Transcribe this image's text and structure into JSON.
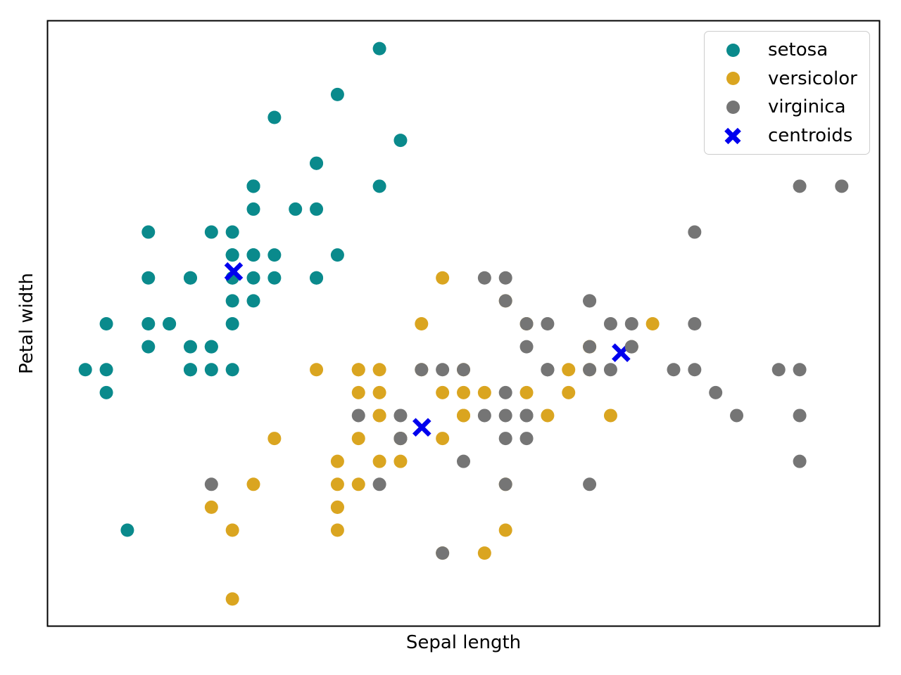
{
  "chart_data": {
    "type": "scatter",
    "title": "",
    "xlabel": "Sepal length",
    "ylabel": "Petal width",
    "xlim": [
      4.12,
      8.08
    ],
    "ylim": [
      1.88,
      4.52
    ],
    "grid": false,
    "ticks": "none",
    "axis_color": "#000000",
    "background_color": "#ffffff",
    "series": [
      {
        "name": "setosa",
        "marker": "circle",
        "color": "#0a8a8c",
        "points": [
          [
            5.1,
            3.5
          ],
          [
            4.9,
            3.0
          ],
          [
            4.7,
            3.2
          ],
          [
            4.6,
            3.1
          ],
          [
            5.0,
            3.6
          ],
          [
            5.4,
            3.9
          ],
          [
            4.6,
            3.4
          ],
          [
            5.0,
            3.4
          ],
          [
            4.4,
            2.9
          ],
          [
            4.9,
            3.1
          ],
          [
            5.4,
            3.7
          ],
          [
            4.8,
            3.4
          ],
          [
            4.8,
            3.0
          ],
          [
            4.3,
            3.0
          ],
          [
            5.8,
            4.0
          ],
          [
            5.7,
            4.4
          ],
          [
            5.4,
            3.9
          ],
          [
            5.1,
            3.5
          ],
          [
            5.7,
            3.8
          ],
          [
            5.1,
            3.8
          ],
          [
            5.4,
            3.4
          ],
          [
            5.1,
            3.7
          ],
          [
            4.6,
            3.6
          ],
          [
            5.1,
            3.3
          ],
          [
            4.8,
            3.4
          ],
          [
            5.0,
            3.0
          ],
          [
            5.0,
            3.4
          ],
          [
            5.2,
            3.5
          ],
          [
            5.2,
            3.4
          ],
          [
            4.7,
            3.2
          ],
          [
            4.8,
            3.1
          ],
          [
            5.4,
            3.4
          ],
          [
            5.2,
            4.1
          ],
          [
            5.5,
            4.2
          ],
          [
            4.9,
            3.1
          ],
          [
            5.0,
            3.2
          ],
          [
            5.5,
            3.5
          ],
          [
            4.9,
            3.6
          ],
          [
            4.4,
            3.0
          ],
          [
            5.1,
            3.4
          ],
          [
            5.0,
            3.5
          ],
          [
            4.5,
            2.3
          ],
          [
            4.4,
            3.2
          ],
          [
            5.0,
            3.5
          ],
          [
            5.1,
            3.8
          ],
          [
            4.8,
            3.0
          ],
          [
            5.1,
            3.8
          ],
          [
            4.6,
            3.2
          ],
          [
            5.3,
            3.7
          ],
          [
            5.0,
            3.3
          ]
        ]
      },
      {
        "name": "versicolor",
        "marker": "circle",
        "color": "#daa520",
        "points": [
          [
            7.0,
            3.2
          ],
          [
            6.4,
            3.2
          ],
          [
            6.9,
            3.1
          ],
          [
            5.5,
            2.3
          ],
          [
            6.5,
            2.8
          ],
          [
            5.7,
            2.8
          ],
          [
            6.3,
            3.3
          ],
          [
            4.9,
            2.4
          ],
          [
            6.6,
            2.9
          ],
          [
            5.2,
            2.7
          ],
          [
            5.0,
            2.0
          ],
          [
            5.9,
            3.0
          ],
          [
            6.0,
            2.2
          ],
          [
            6.1,
            2.9
          ],
          [
            5.6,
            2.9
          ],
          [
            6.7,
            3.1
          ],
          [
            5.6,
            3.0
          ],
          [
            5.8,
            2.7
          ],
          [
            6.2,
            2.2
          ],
          [
            5.6,
            2.5
          ],
          [
            5.9,
            3.2
          ],
          [
            6.1,
            2.8
          ],
          [
            6.3,
            2.5
          ],
          [
            6.1,
            2.8
          ],
          [
            6.4,
            2.9
          ],
          [
            6.6,
            3.0
          ],
          [
            6.8,
            2.8
          ],
          [
            6.7,
            3.0
          ],
          [
            6.0,
            2.9
          ],
          [
            5.7,
            2.6
          ],
          [
            5.5,
            2.4
          ],
          [
            5.5,
            2.4
          ],
          [
            5.8,
            2.7
          ],
          [
            6.0,
            2.7
          ],
          [
            5.4,
            3.0
          ],
          [
            6.0,
            3.4
          ],
          [
            6.7,
            3.1
          ],
          [
            6.3,
            2.3
          ],
          [
            5.6,
            3.0
          ],
          [
            5.5,
            2.5
          ],
          [
            5.5,
            2.6
          ],
          [
            6.1,
            3.0
          ],
          [
            5.8,
            2.6
          ],
          [
            5.0,
            2.3
          ],
          [
            5.6,
            2.7
          ],
          [
            5.7,
            3.0
          ],
          [
            5.7,
            2.9
          ],
          [
            6.2,
            2.9
          ],
          [
            5.1,
            2.5
          ],
          [
            5.7,
            2.8
          ]
        ]
      },
      {
        "name": "centroids",
        "marker": "x",
        "color": "#0000ee",
        "points": [
          [
            5.006,
            3.428
          ],
          [
            5.9016,
            2.7485
          ],
          [
            6.85,
            3.0737
          ]
        ]
      },
      {
        "name": "virginica",
        "marker": "circle",
        "color": "#757575",
        "points": [
          [
            6.3,
            3.3
          ],
          [
            5.8,
            2.7
          ],
          [
            7.1,
            3.0
          ],
          [
            6.3,
            2.9
          ],
          [
            6.5,
            3.0
          ],
          [
            7.6,
            3.0
          ],
          [
            4.9,
            2.5
          ],
          [
            7.3,
            2.9
          ],
          [
            6.7,
            2.5
          ],
          [
            7.2,
            3.6
          ],
          [
            6.5,
            3.2
          ],
          [
            6.4,
            2.7
          ],
          [
            6.8,
            3.0
          ],
          [
            5.7,
            2.5
          ],
          [
            5.8,
            2.8
          ],
          [
            6.4,
            3.2
          ],
          [
            6.5,
            3.0
          ],
          [
            7.7,
            3.8
          ],
          [
            7.7,
            2.6
          ],
          [
            6.0,
            2.2
          ],
          [
            6.9,
            3.2
          ],
          [
            5.6,
            2.8
          ],
          [
            7.7,
            2.8
          ],
          [
            6.3,
            2.7
          ],
          [
            6.7,
            3.3
          ],
          [
            7.2,
            3.2
          ],
          [
            6.2,
            2.8
          ],
          [
            6.1,
            3.0
          ],
          [
            6.4,
            2.8
          ],
          [
            7.2,
            3.0
          ],
          [
            7.4,
            2.8
          ],
          [
            7.9,
            3.8
          ],
          [
            6.4,
            2.8
          ],
          [
            6.3,
            2.8
          ],
          [
            6.1,
            2.6
          ],
          [
            7.7,
            3.0
          ],
          [
            6.3,
            3.4
          ],
          [
            6.4,
            3.1
          ],
          [
            6.0,
            3.0
          ],
          [
            6.9,
            3.1
          ],
          [
            6.7,
            3.1
          ],
          [
            6.9,
            3.1
          ],
          [
            5.8,
            2.7
          ],
          [
            6.8,
            3.2
          ],
          [
            6.7,
            3.3
          ],
          [
            6.7,
            3.0
          ],
          [
            6.3,
            2.5
          ],
          [
            6.5,
            3.0
          ],
          [
            6.2,
            3.4
          ],
          [
            5.9,
            3.0
          ]
        ]
      }
    ],
    "legend": {
      "position": "upper right",
      "items": [
        {
          "label": "setosa",
          "marker": "circle",
          "color": "#0a8a8c"
        },
        {
          "label": "versicolor",
          "marker": "circle",
          "color": "#daa520"
        },
        {
          "label": "virginica",
          "marker": "circle",
          "color": "#757575"
        },
        {
          "label": "centroids",
          "marker": "x",
          "color": "#0000ee"
        }
      ]
    }
  }
}
